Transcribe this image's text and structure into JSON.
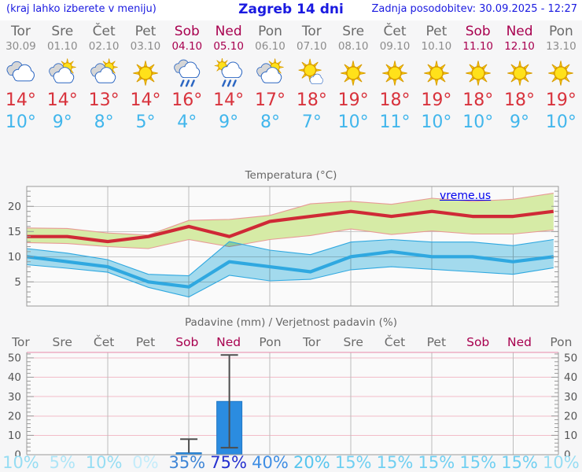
{
  "header": {
    "left_note": "(kraj lahko izberete v meniju)",
    "title": "Zagreb 14 dni",
    "updated": "Zadnja posodobitev: 30.09.2025 - 12:27"
  },
  "colors": {
    "link_blue": "#1a1ae0",
    "weekend_red": "#a8004f",
    "temp_max_red": "#d8323c",
    "temp_min_blue": "#41b6ec"
  },
  "days": [
    {
      "name": "Tor",
      "date": "30.09",
      "weekend": false,
      "icon": "cloudy",
      "tmax": "14°",
      "tmin": "10°"
    },
    {
      "name": "Sre",
      "date": "01.10",
      "weekend": false,
      "icon": "partly-cloudy",
      "tmax": "14°",
      "tmin": "9°"
    },
    {
      "name": "Čet",
      "date": "02.10",
      "weekend": false,
      "icon": "partly-cloudy",
      "tmax": "13°",
      "tmin": "8°"
    },
    {
      "name": "Pet",
      "date": "03.10",
      "weekend": false,
      "icon": "sunny",
      "tmax": "14°",
      "tmin": "5°"
    },
    {
      "name": "Sob",
      "date": "04.10",
      "weekend": true,
      "icon": "rain",
      "tmax": "16°",
      "tmin": "4°"
    },
    {
      "name": "Ned",
      "date": "05.10",
      "weekend": true,
      "icon": "sun-showers",
      "tmax": "14°",
      "tmin": "9°"
    },
    {
      "name": "Pon",
      "date": "06.10",
      "weekend": false,
      "icon": "partly-cloudy",
      "tmax": "17°",
      "tmin": "8°"
    },
    {
      "name": "Tor",
      "date": "07.10",
      "weekend": false,
      "icon": "mostly-sunny",
      "tmax": "18°",
      "tmin": "7°"
    },
    {
      "name": "Sre",
      "date": "08.10",
      "weekend": false,
      "icon": "sunny",
      "tmax": "19°",
      "tmin": "10°"
    },
    {
      "name": "Čet",
      "date": "09.10",
      "weekend": false,
      "icon": "sunny",
      "tmax": "18°",
      "tmin": "11°"
    },
    {
      "name": "Pet",
      "date": "10.10",
      "weekend": false,
      "icon": "sunny",
      "tmax": "19°",
      "tmin": "10°"
    },
    {
      "name": "Sob",
      "date": "11.10",
      "weekend": true,
      "icon": "sunny",
      "tmax": "18°",
      "tmin": "10°"
    },
    {
      "name": "Ned",
      "date": "12.10",
      "weekend": true,
      "icon": "sunny",
      "tmax": "18°",
      "tmin": "9°"
    },
    {
      "name": "Pon",
      "date": "13.10",
      "weekend": false,
      "icon": "sunny",
      "tmax": "19°",
      "tmin": "10°"
    }
  ],
  "chart_data": [
    {
      "type": "line",
      "title": "Temperatura (°C)",
      "watermark": "vreme.us",
      "categories": [
        "Tor",
        "Sre",
        "Čet",
        "Pet",
        "Sob",
        "Ned",
        "Pon",
        "Tor",
        "Sre",
        "Čet",
        "Pet",
        "Sob",
        "Ned",
        "Pon"
      ],
      "ylim": [
        0.2,
        23.95
      ],
      "yticks": [
        5,
        10,
        15,
        20
      ],
      "grid": true,
      "series": [
        {
          "name": "temp-max",
          "color": "#cf2936",
          "values": [
            14,
            14,
            13,
            14,
            16,
            14,
            17,
            18,
            19,
            18,
            19,
            18,
            18,
            19
          ]
        },
        {
          "name": "temp-min",
          "color": "#2fa8e0",
          "values": [
            10,
            9,
            8,
            5,
            4,
            9,
            8,
            7,
            10,
            11,
            10,
            10,
            9,
            10
          ]
        }
      ],
      "bands": [
        {
          "name": "max-range",
          "fill": "#d6eba6",
          "edge": "#e89a96",
          "upper": [
            15.7,
            15.6,
            14.7,
            14.3,
            17.2,
            17.4,
            18.2,
            20.5,
            21.0,
            20.4,
            21.6,
            21.0,
            21.4,
            22.6
          ],
          "lower": [
            12.8,
            12.6,
            12.0,
            11.6,
            13.4,
            12.0,
            13.4,
            14.2,
            15.5,
            14.4,
            15.1,
            14.5,
            14.5,
            15.3
          ]
        },
        {
          "name": "min-range",
          "fill": "#a6dff2",
          "edge": "#2fa8e0",
          "blend": "multiply",
          "upper": [
            11.6,
            10.7,
            9.4,
            6.5,
            6.2,
            13.0,
            11.3,
            10.4,
            12.9,
            13.4,
            12.9,
            12.9,
            12.2,
            13.4
          ],
          "lower": [
            8.4,
            7.7,
            6.9,
            3.9,
            2.0,
            6.3,
            5.2,
            5.5,
            7.4,
            8.0,
            7.5,
            7.0,
            6.5,
            7.8
          ]
        }
      ]
    },
    {
      "type": "bar",
      "title": "Padavine (mm) / Verjetnost padavin (%)",
      "categories": [
        "Tor",
        "Sre",
        "Čet",
        "Pet",
        "Sob",
        "Ned",
        "Pon",
        "Tor",
        "Sre",
        "Čet",
        "Pet",
        "Sob",
        "Ned",
        "Pon"
      ],
      "weekend_indices": [
        4,
        5,
        11,
        12
      ],
      "ylim": [
        0,
        52.8
      ],
      "yticks": [
        0,
        10,
        20,
        30,
        40,
        50
      ],
      "bar_color": "#2b8ce0",
      "whisker_color": "#4d4d4d",
      "values": [
        0,
        0,
        0,
        0,
        1,
        27.5,
        0,
        0,
        0,
        0,
        0,
        0,
        0,
        0
      ],
      "whiskers": [
        {
          "day": 4,
          "low": null,
          "high": 8
        },
        {
          "day": 5,
          "low": 3.6,
          "high": 51.5
        }
      ],
      "probabilities": [
        "10%",
        "5%",
        "10%",
        "0%",
        "35%",
        "75%",
        "40%",
        "20%",
        "15%",
        "15%",
        "15%",
        "15%",
        "15%",
        "10%"
      ],
      "prob_colors": [
        "#96ddf3",
        "#aee5f7",
        "#96ddf3",
        "#c4ecfa",
        "#3f86d6",
        "#2430cf",
        "#3f8ee4",
        "#57c5ee",
        "#6fcff1",
        "#6fcff1",
        "#6fcff1",
        "#6fcff1",
        "#6fcff1",
        "#96ddf3"
      ]
    }
  ]
}
